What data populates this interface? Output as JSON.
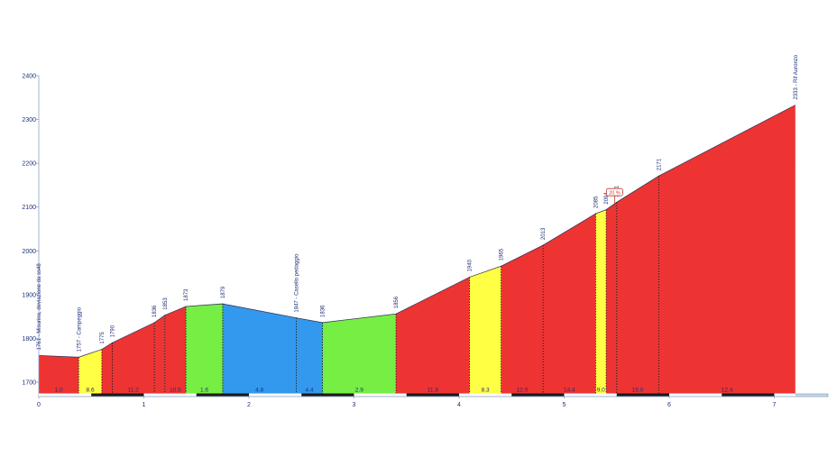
{
  "chart_data": {
    "type": "area",
    "title": "",
    "xlabel": "",
    "ylabel": "",
    "xlim": [
      0,
      7.6
    ],
    "ylim": [
      1660,
      2400
    ],
    "x_ticks": [
      {
        "value": 0,
        "label": "0"
      },
      {
        "value": 1,
        "label": "1"
      },
      {
        "value": 2,
        "label": "2"
      },
      {
        "value": 3,
        "label": "3"
      },
      {
        "value": 4,
        "label": "4"
      },
      {
        "value": 5,
        "label": "5"
      },
      {
        "value": 6,
        "label": "6"
      },
      {
        "value": 7,
        "label": "7"
      }
    ],
    "y_ticks": [
      {
        "value": 1700,
        "label": "1700"
      },
      {
        "value": 1800,
        "label": "1800"
      },
      {
        "value": 1900,
        "label": "1900"
      },
      {
        "value": 2000,
        "label": "2000"
      },
      {
        "value": 2100,
        "label": "2100"
      },
      {
        "value": 2200,
        "label": "2200"
      },
      {
        "value": 2300,
        "label": "2300"
      },
      {
        "value": 2400,
        "label": "2400"
      }
    ],
    "profile": [
      {
        "x": 0.0,
        "y": 1761,
        "label": "1761 - Misurina, deviazione da ss48"
      },
      {
        "x": 0.38,
        "y": 1757,
        "label": "1757 - Campeggio"
      },
      {
        "x": 0.6,
        "y": 1775,
        "label": "1775"
      },
      {
        "x": 0.7,
        "y": 1790,
        "label": "1790"
      },
      {
        "x": 1.1,
        "y": 1836,
        "label": "1836"
      },
      {
        "x": 1.2,
        "y": 1853,
        "label": "1853"
      },
      {
        "x": 1.4,
        "y": 1873,
        "label": "1873"
      },
      {
        "x": 1.75,
        "y": 1879,
        "label": "1879"
      },
      {
        "x": 2.45,
        "y": 1847,
        "label": "1847 - Casello pedaggio"
      },
      {
        "x": 2.7,
        "y": 1836,
        "label": "1836"
      },
      {
        "x": 3.4,
        "y": 1856,
        "label": "1856"
      },
      {
        "x": 4.1,
        "y": 1940,
        "label": "1940"
      },
      {
        "x": 4.4,
        "y": 1965,
        "label": "1965"
      },
      {
        "x": 4.8,
        "y": 2013,
        "label": "2013"
      },
      {
        "x": 5.3,
        "y": 2085,
        "label": "2085"
      },
      {
        "x": 5.4,
        "y": 2094,
        "label": "2094"
      },
      {
        "x": 5.5,
        "y": 2111,
        "label": "2111"
      },
      {
        "x": 5.9,
        "y": 2171,
        "label": "2171"
      },
      {
        "x": 7.2,
        "y": 2333,
        "label": "2333 - Rif Auronzo"
      }
    ],
    "segments": [
      {
        "grade": "1.0",
        "color": "#ee3333"
      },
      {
        "grade": "8.6",
        "color": "#ffff44"
      },
      {
        "grade": "",
        "color": "#ee3333"
      },
      {
        "grade": "11.2",
        "color": "#ee3333"
      },
      {
        "grade": "",
        "color": "#ee3333"
      },
      {
        "grade": "10.5",
        "color": "#ee3333"
      },
      {
        "grade": "1.6",
        "color": "#77ee44"
      },
      {
        "grade": "4.8",
        "color": "#3399ee"
      },
      {
        "grade": "4.4",
        "color": "#3399ee"
      },
      {
        "grade": "2.9",
        "color": "#77ee44"
      },
      {
        "grade": "11.8",
        "color": "#ee3333"
      },
      {
        "grade": "8.3",
        "color": "#ffff44"
      },
      {
        "grade": "12.0",
        "color": "#ee3333"
      },
      {
        "grade": "14.4",
        "color": "#ee3333"
      },
      {
        "grade": "9.0",
        "color": "#ffff44"
      },
      {
        "grade": "",
        "color": "#ee3333"
      },
      {
        "grade": "15.0",
        "color": "#ee3333"
      },
      {
        "grade": "12.4",
        "color": "#ee3333"
      }
    ],
    "badge": {
      "x": 5.48,
      "label": "20 %"
    },
    "grid": false,
    "legend": "none"
  }
}
